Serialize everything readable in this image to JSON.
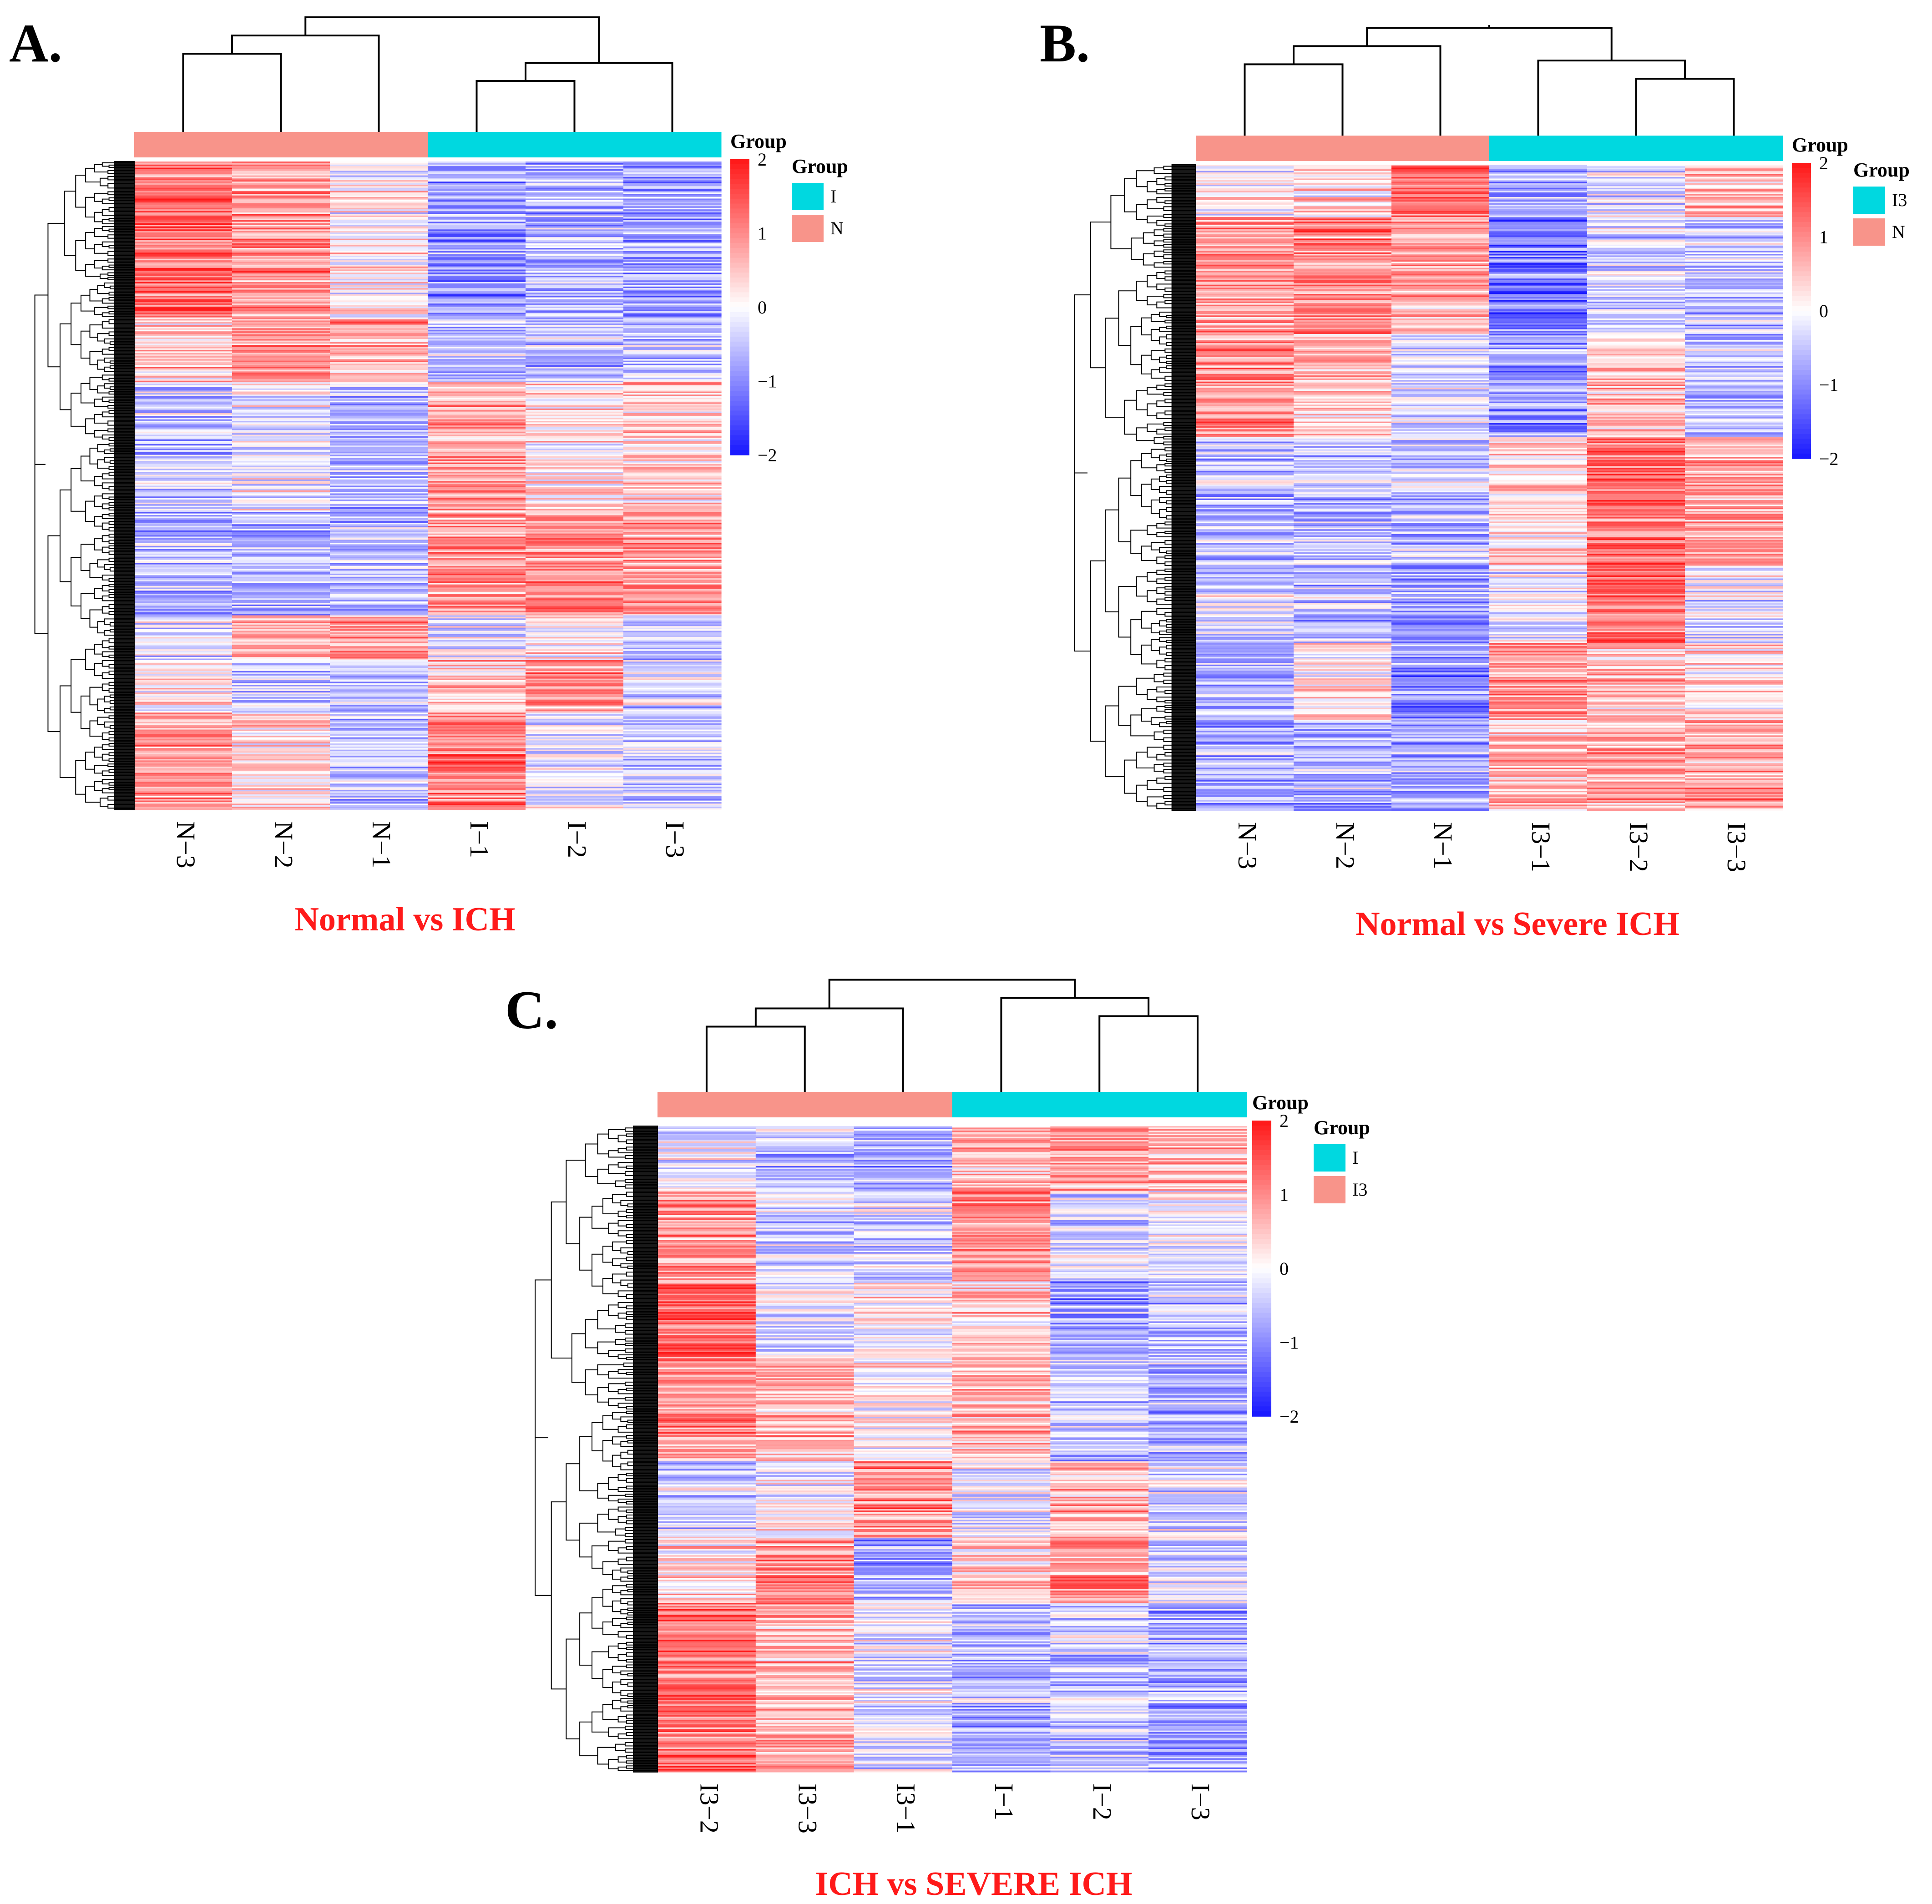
{
  "colors": {
    "high": "#ff1a1a",
    "mid": "#ffffff",
    "low": "#1a1aff",
    "group_pink": "#f8948a",
    "group_cyan": "#00d8e0",
    "title": "#ff1a1a",
    "tree": "#000000"
  },
  "chart_data": [
    {
      "type": "heatmap",
      "panel_label": "A.",
      "title": "Normal vs ICH",
      "columns": [
        "N−3",
        "N−2",
        "N−1",
        "I−1",
        "I−2",
        "I−3"
      ],
      "column_groups": [
        "N",
        "N",
        "N",
        "I",
        "I",
        "I"
      ],
      "legend_title": "Group",
      "legend_items": [
        {
          "label": "I",
          "color": "#00d8e0"
        },
        {
          "label": "N",
          "color": "#f8948a"
        }
      ],
      "scale_title": "Group",
      "scale_range": [
        -2,
        2
      ],
      "scale_ticks": [
        "2",
        "1",
        "0",
        "−1",
        "−2"
      ],
      "blocks": [
        {
          "span": 0.24,
          "values": [
            1.2,
            0.9,
            0.1,
            -0.9,
            -0.7,
            -0.8
          ]
        },
        {
          "span": 0.1,
          "values": [
            0.5,
            1.0,
            0.7,
            -0.6,
            -0.6,
            -0.5
          ]
        },
        {
          "span": 0.2,
          "values": [
            -0.4,
            0.0,
            -0.6,
            0.8,
            0.3,
            0.4
          ]
        },
        {
          "span": 0.16,
          "values": [
            -0.6,
            -0.6,
            -0.5,
            0.9,
            1.0,
            0.9
          ]
        },
        {
          "span": 0.07,
          "values": [
            -0.3,
            0.8,
            0.9,
            -0.2,
            0.2,
            -0.5
          ]
        },
        {
          "span": 0.08,
          "values": [
            0.2,
            -0.4,
            -0.5,
            0.6,
            1.0,
            -0.3
          ]
        },
        {
          "span": 0.15,
          "values": [
            1.0,
            0.3,
            -0.5,
            1.2,
            -0.2,
            -0.4
          ]
        }
      ]
    },
    {
      "type": "heatmap",
      "panel_label": "B.",
      "title": "Normal vs Severe ICH",
      "columns": [
        "N−3",
        "N−2",
        "N−1",
        "I3−1",
        "I3−2",
        "I3−3"
      ],
      "column_groups": [
        "N",
        "N",
        "N",
        "I3",
        "I3",
        "I3"
      ],
      "legend_title": "Group",
      "legend_items": [
        {
          "label": "I3",
          "color": "#00d8e0"
        },
        {
          "label": "N",
          "color": "#f8948a"
        }
      ],
      "scale_title": "Group",
      "scale_range": [
        -2,
        2
      ],
      "scale_ticks": [
        "2",
        "1",
        "0",
        "−1",
        "−2"
      ],
      "blocks": [
        {
          "span": 0.08,
          "values": [
            0.1,
            0.2,
            1.2,
            -0.8,
            -0.2,
            0.6
          ]
        },
        {
          "span": 0.18,
          "values": [
            0.9,
            1.0,
            0.7,
            -1.2,
            -0.4,
            -0.5
          ]
        },
        {
          "span": 0.16,
          "values": [
            1.0,
            0.5,
            -0.3,
            -0.9,
            0.6,
            -0.5
          ]
        },
        {
          "span": 0.2,
          "values": [
            -0.6,
            -0.5,
            -0.5,
            0.3,
            1.2,
            0.7
          ]
        },
        {
          "span": 0.12,
          "values": [
            -0.3,
            -0.5,
            -0.8,
            -0.2,
            1.2,
            -0.2
          ]
        },
        {
          "span": 0.12,
          "values": [
            -0.6,
            0.2,
            -1.0,
            0.9,
            0.6,
            0.3
          ]
        },
        {
          "span": 0.14,
          "values": [
            -0.7,
            -0.6,
            -0.7,
            0.6,
            0.7,
            0.8
          ]
        }
      ]
    },
    {
      "type": "heatmap",
      "panel_label": "C.",
      "title": "ICH vs SEVERE ICH",
      "columns": [
        "I3−2",
        "I3−3",
        "I3−1",
        "I−1",
        "I−2",
        "I−3"
      ],
      "column_groups": [
        "I3",
        "I3",
        "I3",
        "I",
        "I",
        "I"
      ],
      "legend_title": "Group",
      "legend_items": [
        {
          "label": "I",
          "color": "#00d8e0"
        },
        {
          "label": "I3",
          "color": "#f8948a"
        }
      ],
      "scale_title": "Group",
      "scale_range": [
        -2,
        2
      ],
      "scale_ticks": [
        "2",
        "1",
        "0",
        "−1",
        "−2"
      ],
      "blocks": [
        {
          "span": 0.1,
          "values": [
            -0.2,
            -0.5,
            -0.7,
            0.6,
            0.8,
            0.6
          ]
        },
        {
          "span": 0.14,
          "values": [
            0.8,
            -0.4,
            -0.4,
            0.9,
            -0.3,
            -0.2
          ]
        },
        {
          "span": 0.12,
          "values": [
            1.3,
            -0.2,
            0.2,
            0.4,
            -0.8,
            -0.5
          ]
        },
        {
          "span": 0.16,
          "values": [
            0.9,
            0.7,
            0.2,
            0.6,
            -0.5,
            -0.6
          ]
        },
        {
          "span": 0.12,
          "values": [
            -0.3,
            0.1,
            1.0,
            -0.2,
            0.7,
            -0.3
          ]
        },
        {
          "span": 0.1,
          "values": [
            0.3,
            0.9,
            -0.7,
            0.4,
            0.9,
            -0.4
          ]
        },
        {
          "span": 0.26,
          "values": [
            1.2,
            0.7,
            -0.2,
            -0.6,
            -0.4,
            -0.7
          ]
        }
      ]
    }
  ]
}
